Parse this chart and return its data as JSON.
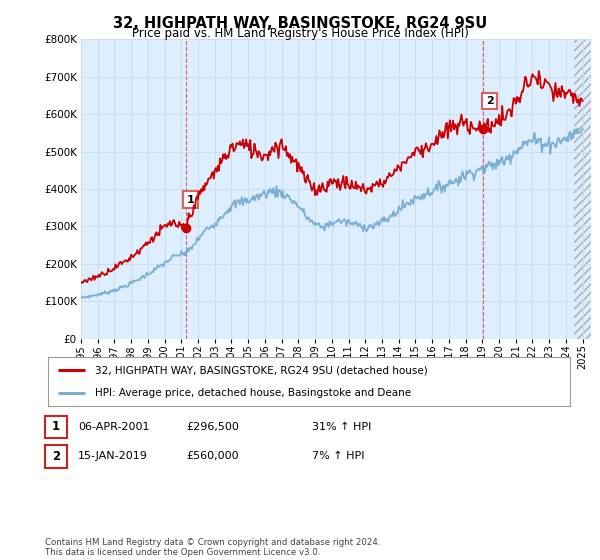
{
  "title": "32, HIGHPATH WAY, BASINGSTOKE, RG24 9SU",
  "subtitle": "Price paid vs. HM Land Registry's House Price Index (HPI)",
  "ylim": [
    0,
    800000
  ],
  "xlim_start": 1995.0,
  "xlim_end": 2025.5,
  "sale1_x": 2001.26,
  "sale1_y": 296500,
  "sale2_x": 2019.04,
  "sale2_y": 560000,
  "hpi_color": "#7bafd4",
  "price_color": "#cc0000",
  "marker_color": "#cc0000",
  "vline_color": "#e06060",
  "bg_chart": "#ddeeff",
  "legend_label_red": "32, HIGHPATH WAY, BASINGSTOKE, RG24 9SU (detached house)",
  "legend_label_blue": "HPI: Average price, detached house, Basingstoke and Deane",
  "table_row1": [
    "1",
    "06-APR-2001",
    "£296,500",
    "31% ↑ HPI"
  ],
  "table_row2": [
    "2",
    "15-JAN-2019",
    "£560,000",
    "7% ↑ HPI"
  ],
  "footer": "Contains HM Land Registry data © Crown copyright and database right 2024.\nThis data is licensed under the Open Government Licence v3.0.",
  "background_color": "#ffffff",
  "grid_color": "#ccddee",
  "hpi_years": [
    1995.0,
    1995.5,
    1996.0,
    1996.5,
    1997.0,
    1997.5,
    1998.0,
    1998.5,
    1999.0,
    1999.5,
    2000.0,
    2000.5,
    2001.0,
    2001.26,
    2001.5,
    2002.0,
    2002.5,
    2003.0,
    2003.5,
    2004.0,
    2004.5,
    2005.0,
    2005.5,
    2006.0,
    2006.5,
    2007.0,
    2007.5,
    2008.0,
    2008.5,
    2009.0,
    2009.5,
    2010.0,
    2010.5,
    2011.0,
    2011.5,
    2012.0,
    2012.5,
    2013.0,
    2013.5,
    2014.0,
    2014.5,
    2015.0,
    2015.5,
    2016.0,
    2016.5,
    2017.0,
    2017.5,
    2018.0,
    2018.5,
    2019.04,
    2019.5,
    2020.0,
    2020.5,
    2021.0,
    2021.5,
    2022.0,
    2022.5,
    2023.0,
    2023.5,
    2024.0,
    2024.5,
    2025.0
  ],
  "hpi_values": [
    110000,
    113000,
    118000,
    123000,
    130000,
    138000,
    148000,
    160000,
    173000,
    187000,
    202000,
    218000,
    226000,
    229000,
    238000,
    265000,
    292000,
    308000,
    332000,
    355000,
    365000,
    370000,
    378000,
    388000,
    395000,
    390000,
    375000,
    355000,
    325000,
    305000,
    298000,
    310000,
    315000,
    310000,
    305000,
    298000,
    302000,
    312000,
    325000,
    345000,
    360000,
    375000,
    385000,
    395000,
    405000,
    415000,
    425000,
    438000,
    448000,
    455000,
    462000,
    470000,
    482000,
    505000,
    520000,
    530000,
    525000,
    520000,
    525000,
    535000,
    548000,
    560000
  ],
  "price_years": [
    1995.0,
    1995.5,
    1996.0,
    1996.5,
    1997.0,
    1997.5,
    1998.0,
    1998.5,
    1999.0,
    1999.5,
    2000.0,
    2000.5,
    2001.0,
    2001.26,
    2001.5,
    2002.0,
    2002.5,
    2003.0,
    2003.5,
    2004.0,
    2004.5,
    2005.0,
    2005.5,
    2006.0,
    2006.5,
    2007.0,
    2007.5,
    2008.0,
    2008.5,
    2009.0,
    2009.5,
    2010.0,
    2010.5,
    2011.0,
    2011.5,
    2012.0,
    2012.5,
    2013.0,
    2013.5,
    2014.0,
    2014.5,
    2015.0,
    2015.5,
    2016.0,
    2016.5,
    2017.0,
    2017.5,
    2018.0,
    2018.5,
    2019.04,
    2019.5,
    2020.0,
    2020.5,
    2021.0,
    2021.5,
    2022.0,
    2022.5,
    2023.0,
    2023.5,
    2024.0,
    2024.5,
    2025.0
  ],
  "price_values": [
    150000,
    158000,
    168000,
    178000,
    190000,
    203000,
    218000,
    237000,
    258000,
    278000,
    298000,
    310000,
    296500,
    296500,
    330000,
    375000,
    415000,
    445000,
    480000,
    510000,
    520000,
    512000,
    500000,
    488000,
    510000,
    520000,
    490000,
    460000,
    420000,
    400000,
    405000,
    420000,
    418000,
    412000,
    405000,
    398000,
    408000,
    418000,
    435000,
    458000,
    480000,
    500000,
    510000,
    520000,
    540000,
    558000,
    570000,
    575000,
    570000,
    560000,
    572000,
    582000,
    598000,
    630000,
    668000,
    700000,
    685000,
    665000,
    655000,
    650000,
    645000,
    635000
  ],
  "hatch_start": 2024.5
}
